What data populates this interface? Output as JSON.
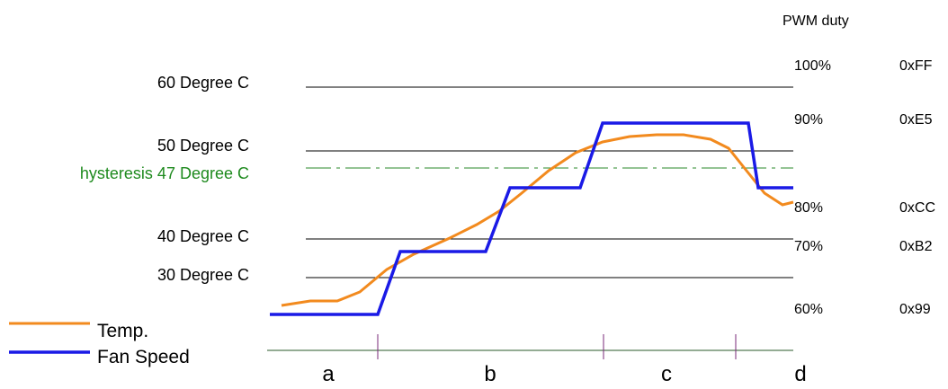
{
  "pwm_heading": "PWM duty",
  "temperature_labels": [
    "60 Degree C",
    "50 Degree C",
    "40 Degree C",
    "30 Degree C"
  ],
  "hysteresis_label": "hysteresis 47 Degree C",
  "duty_levels": [
    {
      "percent": "100%",
      "hex": "0xFF"
    },
    {
      "percent": "90%",
      "hex": "0xE5"
    },
    {
      "percent": "80%",
      "hex": "0xCC"
    },
    {
      "percent": "70%",
      "hex": "0xB2"
    },
    {
      "percent": "60%",
      "hex": "0x99"
    }
  ],
  "legend": [
    "Temp.",
    "Fan Speed"
  ],
  "phases": [
    "a",
    "b",
    "c",
    "d"
  ]
}
